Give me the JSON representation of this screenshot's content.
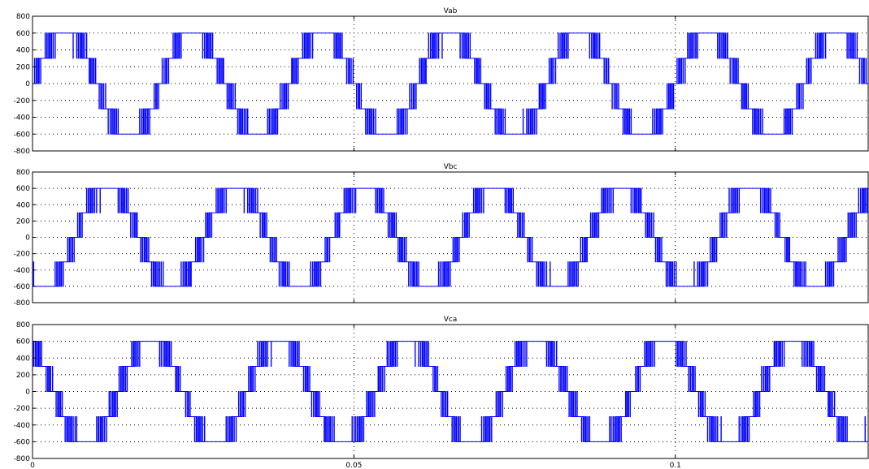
{
  "chart_data": [
    {
      "type": "line",
      "title": "Vab",
      "xlim": [
        0,
        0.13
      ],
      "ylim": [
        -800,
        800
      ],
      "yticks": [
        800,
        600,
        400,
        200,
        0,
        -200,
        -400,
        -600,
        -800
      ],
      "ytick_labels": [
        "800",
        "600",
        "400",
        "200",
        "0",
        "-200",
        "-400",
        "-600",
        "-800"
      ],
      "grid": true,
      "line_color": "#0000ff",
      "period": 0.02,
      "phase": 0.0,
      "levels": [
        0,
        300,
        600
      ],
      "series": [
        {
          "name": "Vab",
          "description_values": "multilevel PWM, 7-level staircase between -600 and 600"
        }
      ]
    },
    {
      "type": "line",
      "title": "Vbc",
      "xlim": [
        0,
        0.13
      ],
      "ylim": [
        -800,
        800
      ],
      "yticks": [
        800,
        600,
        400,
        200,
        0,
        -200,
        -400,
        -600,
        -800
      ],
      "ytick_labels": [
        "800",
        "600",
        "400",
        "200",
        "0",
        "-200",
        "-400",
        "-600",
        "-800"
      ],
      "grid": true,
      "line_color": "#0000ff",
      "period": 0.02,
      "phase": -2.0944,
      "levels": [
        0,
        300,
        600
      ],
      "series": [
        {
          "name": "Vbc",
          "description_values": "multilevel PWM, 7-level staircase between -600 and 600"
        }
      ]
    },
    {
      "type": "line",
      "title": "Vca",
      "xlim": [
        0,
        0.13
      ],
      "ylim": [
        -800,
        800
      ],
      "yticks": [
        800,
        600,
        400,
        200,
        0,
        -200,
        -400,
        -600,
        -800
      ],
      "ytick_labels": [
        "800",
        "600",
        "400",
        "200",
        "0",
        "-200",
        "-400",
        "-600",
        "-800"
      ],
      "grid": true,
      "line_color": "#0000ff",
      "period": 0.02,
      "phase": 2.0944,
      "levels": [
        0,
        300,
        600
      ],
      "series": [
        {
          "name": "Vca",
          "description_values": "multilevel PWM, 7-level staircase between -600 and 600"
        }
      ]
    }
  ],
  "x_axis": {
    "ticks": [
      0,
      0.05,
      0.1
    ],
    "tick_labels": [
      "0",
      "0.05",
      "0.1"
    ]
  }
}
